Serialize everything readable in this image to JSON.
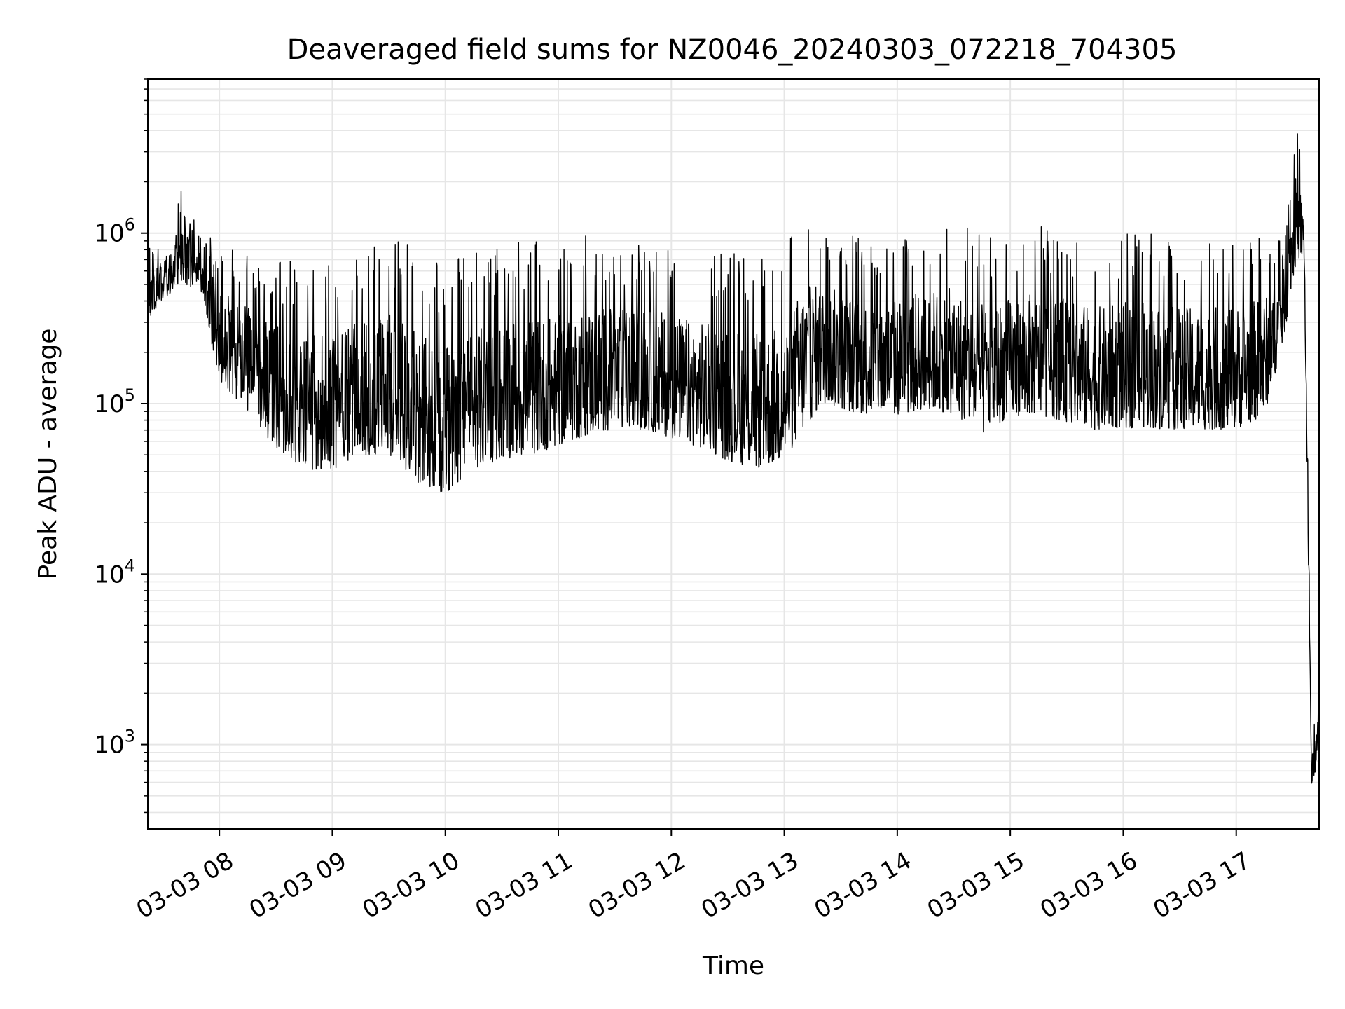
{
  "chart_data": {
    "type": "line",
    "title": "Deaveraged field sums for NZ0046_20240303_072218_704305",
    "xlabel": "Time",
    "ylabel": "Peak ADU - average",
    "yscale": "log",
    "ylim": [
      320,
      8000000
    ],
    "xlim": [
      "2024-03-03 07:22",
      "2024-03-03 17:44"
    ],
    "grid": "on (major and minor)",
    "line_color": "#000000",
    "x_ticks": [
      "03-03 08",
      "03-03 09",
      "03-03 10",
      "03-03 11",
      "03-03 12",
      "03-03 13",
      "03-03 14",
      "03-03 15",
      "03-03 16",
      "03-03 17"
    ],
    "y_ticks": [
      {
        "value": 1000,
        "base": "10",
        "exp": "3"
      },
      {
        "value": 10000,
        "base": "10",
        "exp": "4"
      },
      {
        "value": 100000,
        "base": "10",
        "exp": "5"
      },
      {
        "value": 1000000,
        "base": "10",
        "exp": "6"
      }
    ],
    "envelope": {
      "x": [
        "2024-03-03 07:22",
        "2024-03-03 07:30",
        "2024-03-03 07:40",
        "2024-03-03 07:50",
        "2024-03-03 08:00",
        "2024-03-03 08:15",
        "2024-03-03 08:30",
        "2024-03-03 08:45",
        "2024-03-03 09:00",
        "2024-03-03 09:15",
        "2024-03-03 09:30",
        "2024-03-03 09:45",
        "2024-03-03 10:00",
        "2024-03-03 10:15",
        "2024-03-03 10:30",
        "2024-03-03 10:45",
        "2024-03-03 11:00",
        "2024-03-03 11:15",
        "2024-03-03 11:30",
        "2024-03-03 11:45",
        "2024-03-03 12:00",
        "2024-03-03 12:15",
        "2024-03-03 12:30",
        "2024-03-03 12:45",
        "2024-03-03 13:00",
        "2024-03-03 13:10",
        "2024-03-03 13:20",
        "2024-03-03 13:30",
        "2024-03-03 13:45",
        "2024-03-03 14:00",
        "2024-03-03 14:15",
        "2024-03-03 14:30",
        "2024-03-03 14:45",
        "2024-03-03 15:00",
        "2024-03-03 15:15",
        "2024-03-03 15:30",
        "2024-03-03 15:45",
        "2024-03-03 16:00",
        "2024-03-03 16:15",
        "2024-03-03 16:30",
        "2024-03-03 16:45",
        "2024-03-03 17:00",
        "2024-03-03 17:15",
        "2024-03-03 17:25",
        "2024-03-03 17:32",
        "2024-03-03 17:36",
        "2024-03-03 17:40",
        "2024-03-03 17:44"
      ],
      "upper": [
        850000,
        900000,
        1800000,
        1000000,
        900000,
        800000,
        700000,
        700000,
        650000,
        900000,
        1000000,
        800000,
        700000,
        750000,
        900000,
        900000,
        850000,
        1000000,
        900000,
        900000,
        850000,
        750000,
        800000,
        700000,
        800000,
        1500000,
        1200000,
        1100000,
        1000000,
        1000000,
        1100000,
        1200000,
        1000000,
        1000000,
        1100000,
        1000000,
        900000,
        1000000,
        1000000,
        900000,
        900000,
        950000,
        1000000,
        1000000,
        4500000,
        2000000,
        1000,
        2200
      ],
      "lower": [
        250000,
        350000,
        400000,
        400000,
        100000,
        60000,
        35000,
        25000,
        25000,
        30000,
        30000,
        20000,
        17000,
        25000,
        28000,
        30000,
        35000,
        40000,
        45000,
        45000,
        40000,
        35000,
        28000,
        25000,
        28000,
        40000,
        65000,
        60000,
        55000,
        55000,
        60000,
        55000,
        40000,
        55000,
        55000,
        50000,
        45000,
        45000,
        45000,
        45000,
        45000,
        45000,
        55000,
        180000,
        500000,
        600000,
        520,
        700
      ]
    }
  }
}
